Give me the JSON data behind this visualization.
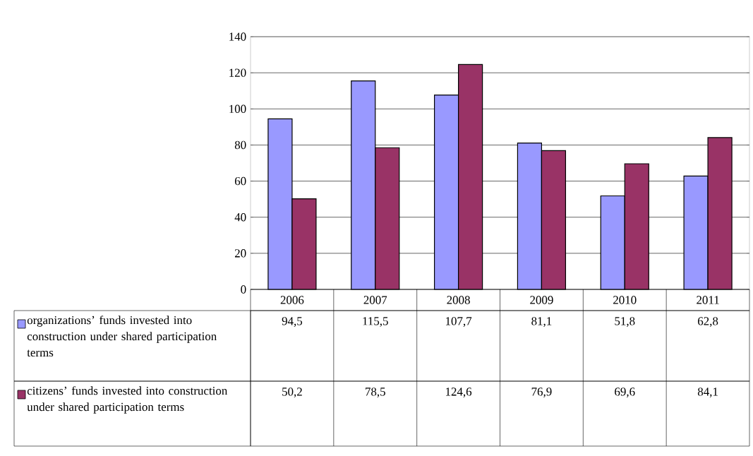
{
  "chart_data": {
    "type": "bar",
    "categories": [
      "2006",
      "2007",
      "2008",
      "2009",
      "2010",
      "2011"
    ],
    "series": [
      {
        "name": "organizations’ funds invested into construction under shared participation terms",
        "color": "#9999ff",
        "values": [
          94.5,
          115.5,
          107.7,
          81.1,
          51.8,
          62.8
        ],
        "value_labels": [
          "94,5",
          "115,5",
          "107,7",
          "81,1",
          "51,8",
          "62,8"
        ]
      },
      {
        "name": "citizens’ funds invested into construction under shared participation terms",
        "color": "#993366",
        "values": [
          50.2,
          78.5,
          124.6,
          76.9,
          69.6,
          84.1
        ],
        "value_labels": [
          "50,2",
          "78,5",
          "124,6",
          "76,9",
          "69,6",
          "84,1"
        ]
      }
    ],
    "ylim": [
      0,
      140
    ],
    "yticks": [
      0,
      20,
      40,
      60,
      80,
      100,
      120,
      140
    ],
    "grid": "y",
    "legend": "bottom left"
  }
}
